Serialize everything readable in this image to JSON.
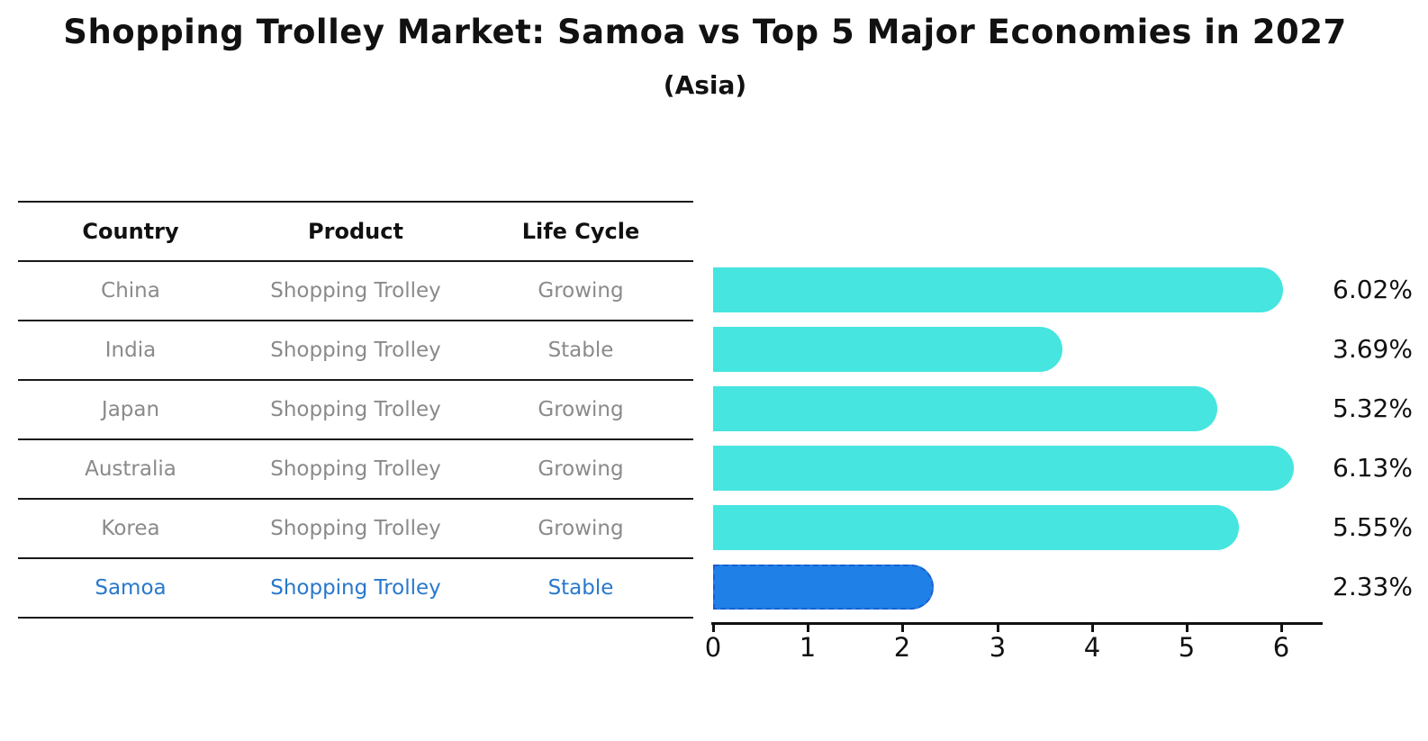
{
  "title": "Shopping Trolley Market: Samoa vs Top 5 Major Economies in 2027",
  "subtitle": "(Asia)",
  "table": {
    "headers": [
      "Country",
      "Product",
      "Life Cycle"
    ],
    "rows": [
      {
        "country": "China",
        "product": "Shopping Trolley",
        "life_cycle": "Growing",
        "highlight": false
      },
      {
        "country": "India",
        "product": "Shopping Trolley",
        "life_cycle": "Stable",
        "highlight": false
      },
      {
        "country": "Japan",
        "product": "Shopping Trolley",
        "life_cycle": "Growing",
        "highlight": false
      },
      {
        "country": "Australia",
        "product": "Shopping Trolley",
        "life_cycle": "Growing",
        "highlight": false
      },
      {
        "country": "Korea",
        "product": "Shopping Trolley",
        "life_cycle": "Growing",
        "highlight": false
      },
      {
        "country": "Samoa",
        "product": "Shopping Trolley",
        "life_cycle": "Stable",
        "highlight": true
      }
    ]
  },
  "chart_data": {
    "type": "bar",
    "orientation": "horizontal",
    "title": "Shopping Trolley Market: Samoa vs Top 5 Major Economies in 2027",
    "subtitle": "(Asia)",
    "categories": [
      "China",
      "India",
      "Japan",
      "Australia",
      "Korea",
      "Samoa"
    ],
    "values": [
      6.02,
      3.69,
      5.32,
      6.13,
      5.55,
      2.33
    ],
    "value_labels": [
      "6.02%",
      "3.69%",
      "5.32%",
      "6.13%",
      "5.55%",
      "2.33%"
    ],
    "highlight_index": 5,
    "xlim": [
      0,
      6.44
    ],
    "xticks": [
      "0",
      "1",
      "2",
      "3",
      "4",
      "5",
      "6"
    ],
    "grid": "off",
    "legend": "none",
    "colors": {
      "bar": "#46e5e0",
      "highlight_bar": "#1f80e8",
      "highlight_border": "#1a5fd0",
      "highlight_text": "#2878cb",
      "table_text": "#8a8a8a",
      "axis": "#111111"
    }
  }
}
